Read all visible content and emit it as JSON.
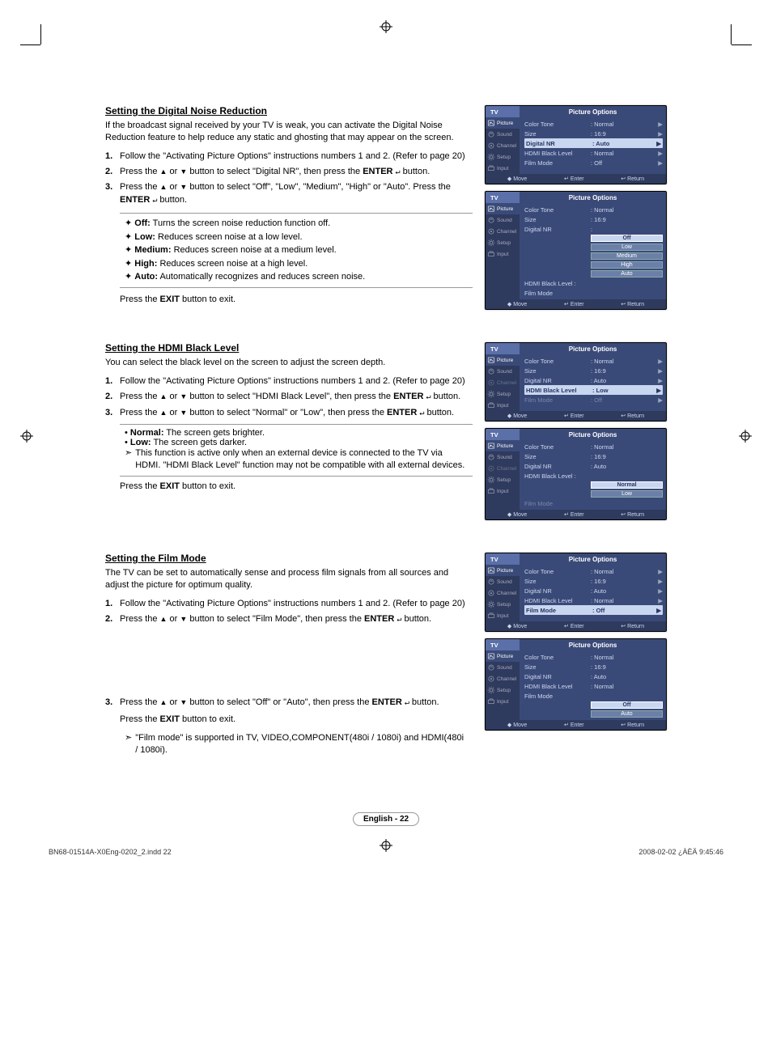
{
  "page": {
    "number_label": "English - 22",
    "doc_footer_left": "BN68-01514A-X0Eng-0202_2.indd   22",
    "doc_footer_right": "2008-02-02   ¿ÀÈÄ 9:45:46"
  },
  "icons": {
    "up": "▲",
    "down": "▼",
    "enter": "↵",
    "right_tri": "▶",
    "note": "➣",
    "diamond": "✦"
  },
  "osd_common": {
    "tv": "TV",
    "title": "Picture Options",
    "side": [
      {
        "icon": "picture",
        "label": "Picture"
      },
      {
        "icon": "sound",
        "label": "Sound"
      },
      {
        "icon": "channel",
        "label": "Channel"
      },
      {
        "icon": "setup",
        "label": "Setup"
      },
      {
        "icon": "input",
        "label": "Input"
      }
    ],
    "footer": {
      "move": "Move",
      "enter": "Enter",
      "return": "Return",
      "move_sym": "◆",
      "enter_sym": "↵",
      "return_sym": "↩"
    }
  },
  "sections": [
    {
      "title": "Setting the Digital Noise Reduction",
      "intro": "If the broadcast signal received by your TV is weak, you can activate the Digital Noise Reduction feature to help reduce any static and ghosting that may appear on the screen.",
      "steps": [
        {
          "n": "1.",
          "txt": "Follow the \"Activating Picture Options\" instructions numbers 1 and 2. (Refer to page 20)"
        },
        {
          "n": "2.",
          "txt": "Press the ▲ or ▼ button to select \"Digital NR\", then press the ENTER ↵ button."
        },
        {
          "n": "3.",
          "txt": "Press the ▲ or ▼ button to select \"Off\", \"Low\", \"Medium\", \"High\" or \"Auto\". Press the ENTER ↵ button."
        }
      ],
      "bullets": [
        {
          "lbl": "Off:",
          "txt": " Turns the screen noise reduction function off."
        },
        {
          "lbl": "Low:",
          "txt": " Reduces screen noise at a low level."
        },
        {
          "lbl": "Medium:",
          "txt": " Reduces screen noise at a medium level."
        },
        {
          "lbl": "High:",
          "txt": " Reduces screen noise at a high level."
        },
        {
          "lbl": "Auto:",
          "txt": " Automatically recognizes and reduces screen noise."
        }
      ],
      "exit": "Press the EXIT button to exit.",
      "osd": [
        {
          "rows": [
            {
              "k": "Color Tone",
              "v": ": Normal",
              "arr": true
            },
            {
              "k": "Size",
              "v": ": 16:9",
              "arr": true
            },
            {
              "k": "Digital NR",
              "v": ": Auto",
              "arr": true,
              "hl": true
            },
            {
              "k": "HDMI Black Level",
              "v": ": Normal",
              "arr": true
            },
            {
              "k": "Film Mode",
              "v": ": Off",
              "arr": true
            }
          ]
        },
        {
          "rows": [
            {
              "k": "Color Tone",
              "v": ": Normal"
            },
            {
              "k": "Size",
              "v": ": 16:9"
            },
            {
              "k": "Digital NR",
              "v": ":",
              "opts": [
                "Off",
                "Low",
                "Medium",
                "High",
                "Auto"
              ],
              "sel": "Off"
            },
            {
              "k": "HDMI Black Level :",
              "v": "",
              "shift": true
            },
            {
              "k": "Film Mode",
              "v": ""
            }
          ]
        }
      ]
    },
    {
      "title": "Setting the HDMI Black Level",
      "intro": "You can select the black level on the screen to adjust the screen depth.",
      "steps": [
        {
          "n": "1.",
          "txt": "Follow the \"Activating Picture Options\" instructions numbers 1 and 2. (Refer to page 20)"
        },
        {
          "n": "2.",
          "txt": "Press the ▲ or ▼ button to select \"HDMI Black Level\", then press the ENTER ↵ button."
        },
        {
          "n": "3.",
          "txt": "Press the ▲ or ▼ button to select \"Normal\" or \"Low\", then press the ENTER ↵ button."
        }
      ],
      "bullets2": [
        {
          "lbl": "Normal:",
          "txt": " The screen gets brighter."
        },
        {
          "lbl": "Low:",
          "txt": " The screen gets darker."
        }
      ],
      "notes": [
        {
          "sym": "➣",
          "txt": "This function is active only when an external device is connected to the TV via HDMI. \"HDMI Black Level\" function may not be compatible with all external devices."
        }
      ],
      "exit": "Press the EXIT button to exit.",
      "osd": [
        {
          "rows": [
            {
              "k": "Color Tone",
              "v": ": Normal",
              "arr": true
            },
            {
              "k": "Size",
              "v": ": 16:9",
              "arr": true
            },
            {
              "k": "Digital NR",
              "v": ": Auto",
              "arr": true
            },
            {
              "k": "HDMI Black Level",
              "v": ": Low",
              "arr": true,
              "hl": true
            },
            {
              "k": "Film Mode",
              "v": ": Off",
              "arr": true,
              "dim": true
            }
          ],
          "side_dim_channel": true
        },
        {
          "rows": [
            {
              "k": "Color Tone",
              "v": ": Normal"
            },
            {
              "k": "Size",
              "v": ": 16:9"
            },
            {
              "k": "Digital NR",
              "v": ": Auto"
            },
            {
              "k": "HDMI Black Level :",
              "v": "",
              "opts": [
                "Normal",
                "Low"
              ],
              "sel": "Normal"
            },
            {
              "k": "Film Mode",
              "v": "",
              "dim": true
            }
          ],
          "side_dim_channel": true
        }
      ]
    },
    {
      "title": "Setting the Film Mode",
      "intro": "The TV can be set to automatically sense and process film signals from all sources and adjust the picture for optimum quality.",
      "steps": [
        {
          "n": "1.",
          "txt": "Follow the \"Activating Picture Options\" instructions numbers 1 and 2. (Refer to page 20)"
        },
        {
          "n": "2.",
          "txt": "Press the ▲ or ▼ button to select \"Film Mode\", then press the ENTER ↵ button."
        }
      ],
      "steps2": [
        {
          "n": "3.",
          "txt": "Press the ▲ or ▼ button to select \"Off\" or \"Auto\", then press the ENTER ↵ button."
        }
      ],
      "exit": "Press the EXIT button to exit.",
      "notes": [
        {
          "sym": "➣",
          "txt": "\"Film mode\" is supported in TV, VIDEO,COMPONENT(480i / 1080i) and HDMI(480i / 1080i)."
        }
      ],
      "osd": [
        {
          "rows": [
            {
              "k": "Color Tone",
              "v": ": Normal",
              "arr": true
            },
            {
              "k": "Size",
              "v": ": 16:9",
              "arr": true
            },
            {
              "k": "Digital NR",
              "v": ": Auto",
              "arr": true
            },
            {
              "k": "HDMI Black Level",
              "v": ": Normal",
              "arr": true
            },
            {
              "k": "Film Mode",
              "v": ": Off",
              "arr": true,
              "hl": true
            }
          ]
        },
        {
          "rows": [
            {
              "k": "Color Tone",
              "v": ": Normal"
            },
            {
              "k": "Size",
              "v": ": 16:9"
            },
            {
              "k": "Digital NR",
              "v": ": Auto"
            },
            {
              "k": "HDMI Black Level",
              "v": ": Normal"
            },
            {
              "k": "Film Mode",
              "v": "",
              "opts": [
                "Off",
                "Auto"
              ],
              "sel": "Off"
            }
          ]
        }
      ]
    }
  ]
}
